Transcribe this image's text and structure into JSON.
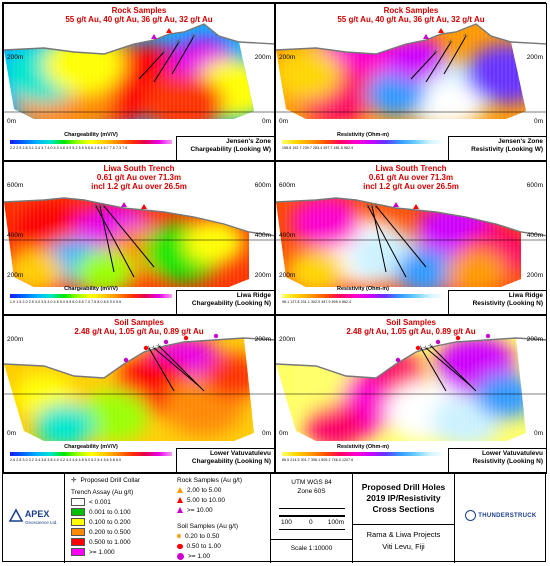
{
  "panels": [
    {
      "id": "p1",
      "colorbar": "charge",
      "rock": "Rock Samples\n55 g/t Au, 40 g/t Au, 36 g/t Au, 32 g/t Au",
      "elev_top": "200m",
      "elev_bot": "0m",
      "elev_right_top": "200m",
      "elev_right_bot": "0m",
      "cb_title": "Chargeability (mV/V)",
      "cb_ticks": "2.2  2.5  2.8  3.1  3.4  3.7  4.0  4.3  4.6  4.9  5.2  5.5  5.8  6.1  6.4  6.7  7.0  7.3  7.6",
      "info1": "Jensen's Zone",
      "info2": "Chargeability (Looking W)"
    },
    {
      "id": "p2",
      "colorbar": "resist",
      "rock": "Rock Samples\n55 g/t Au, 40 g/t Au, 36 g/t Au, 32 g/t Au",
      "elev_top": "200m",
      "elev_bot": "0m",
      "elev_right_top": "200m",
      "elev_right_bot": "0m",
      "cb_title": "Resistivity (Ohm-m)",
      "cb_ticks": "158.8   192.7   239.7   283.4   397.7   481.5   582.9",
      "info1": "Jensen's Zone",
      "info2": "Resistivity (Looking W)"
    },
    {
      "id": "p3",
      "colorbar": "charge",
      "rock": "Liwa South Trench\n0.61 g/t Au over 71.3m\nincl 1.2 g/t Au over 26.5m",
      "elev_top": "600m",
      "elev_mid": "400m",
      "elev_bot": "200m",
      "elev_right_top": "600m",
      "elev_right_mid": "400m",
      "elev_right_bot": "200m",
      "cb_title": "Chargeability (mV/V)",
      "cb_ticks": "1.0  1.5  2.0  2.5  3.0  3.5  4.0  4.5  5.0  5.5  6.0  6.5  7.0  7.5  8.0  8.5  9.0  9.5",
      "info1": "Liwa Ridge",
      "info2": "Chargeability (Looking N)"
    },
    {
      "id": "p4",
      "colorbar": "resist",
      "rock": "Liwa South Trench\n0.61 g/t Au over 71.3m\nincl 1.2 g/t Au over 26.5m",
      "elev_top": "600m",
      "elev_mid": "400m",
      "elev_bot": "200m",
      "elev_right_top": "600m",
      "elev_right_mid": "400m",
      "elev_right_bot": "200m",
      "cb_title": "Resistivity (Ohm-m)",
      "cb_ticks": "98.1   127.8   231.1   302.9   457.9   595.9   862.4",
      "info1": "Liwa Ridge",
      "info2": "Resistivity (Looking N)"
    },
    {
      "id": "p5",
      "colorbar": "charge",
      "rock": "Soil Samples\n2.48 g/t Au, 1.05 g/t Au, 0.89 g/t Au",
      "elev_top": "200m",
      "elev_bot": "0m",
      "elev_right_top": "200m",
      "elev_right_bot": "0m",
      "cb_title": "Chargeability (mV/V)",
      "cb_ticks": "2.6  2.8  3.0  3.2  3.4  3.6  3.8  4.0  4.2  4.4  4.6  4.8  5.0  5.2  5.4  5.6  5.8  6.0",
      "info1": "Lower Vatuvatulevu",
      "info2": "Chargeability (Looking N)"
    },
    {
      "id": "p6",
      "colorbar": "resist",
      "rock": "Soil Samples\n2.48 g/t Au, 1.05 g/t Au, 0.89 g/t Au",
      "elev_top": "200m",
      "elev_bot": "0m",
      "elev_right_top": "200m",
      "elev_right_bot": "0m",
      "cb_title": "Resistivity (Ohm-m)",
      "cb_ticks": "86.5   214.5   301.7   398.1   505.2   746.0   1207.6",
      "info1": "Lower Vatuvatulevu",
      "info2": "Resistivity (Looking N)"
    }
  ],
  "legend": {
    "logo_name": "APEX",
    "logo_sub": "Geoscience Ltd.",
    "drill_collar": "Proposed Drill Collar",
    "trench_title": "Trench Assay (Au g/t)",
    "trench_items": [
      {
        "label": "< 0.001",
        "color": "#ffffff"
      },
      {
        "label": "0.001 to 0.100",
        "color": "#00c000"
      },
      {
        "label": "0.100 to 0.200",
        "color": "#ffff00"
      },
      {
        "label": "0.200 to 0.500",
        "color": "#ff8c00"
      },
      {
        "label": "0.500 to 1.000",
        "color": "#ff0000"
      },
      {
        "label": ">= 1.000",
        "color": "#ff00ff"
      }
    ],
    "rock_title": "Rock Samples (Au g/t)",
    "rock_items": [
      {
        "label": "2.00 to 5.00",
        "color": "#ff9900"
      },
      {
        "label": "5.00 to 10.00",
        "color": "#ff0000"
      },
      {
        "label": ">= 10.00",
        "color": "#cc00cc"
      }
    ],
    "soil_title": "Soil Samples (Au g/t)",
    "soil_items": [
      {
        "label": "0.20 to 0.50",
        "color": "#ff9900"
      },
      {
        "label": "0.50 to 1.00",
        "color": "#ff0000"
      },
      {
        "label": ">= 1.00",
        "color": "#cc00cc"
      }
    ],
    "utm1": "UTM WGS 84",
    "utm2": "Zone 60S",
    "scale_left": "100",
    "scale_mid": "0",
    "scale_right": "100m",
    "scale_ratio": "Scale 1:10000",
    "title1": "Proposed Drill Holes",
    "title2": "2019 IP/Resistivity",
    "title3": "Cross Sections",
    "project1": "Rama & Liwa Projects",
    "project2": "Viti Levu, Fiji",
    "brand": "THUNDERSTRUCK"
  },
  "colors": {
    "charge": [
      "#1a1aff",
      "#0066ff",
      "#00b3ff",
      "#00e6cc",
      "#00e600",
      "#99ff00",
      "#ffff00",
      "#ffcc00",
      "#ff8800",
      "#ff3300",
      "#e6004d",
      "#e600e6",
      "#ff99ff"
    ],
    "resist": [
      "#ffff66",
      "#ffd400",
      "#ff9900",
      "#ff4d00",
      "#ff0066",
      "#ff00cc",
      "#cc00ff",
      "#6633ff",
      "#3399ff",
      "#66ccff",
      "#ccf2ff",
      "#ffffff"
    ]
  }
}
